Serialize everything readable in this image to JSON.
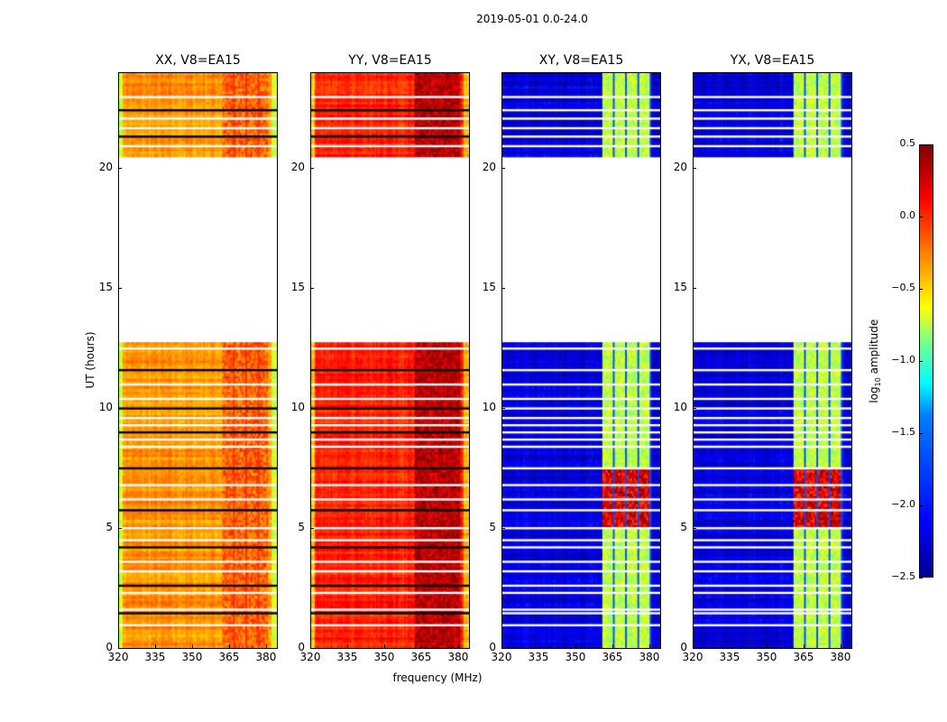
{
  "figure_title": "2019-05-01 0.0-24.0",
  "chart_data": {
    "type": "heatmap",
    "title": "2019-05-01 0.0-24.0",
    "xlabel": "frequency (MHz)",
    "ylabel": "UT (hours)",
    "xlim": [
      320,
      384.4
    ],
    "ylim": [
      0,
      24
    ],
    "xticks": [
      "320",
      "335",
      "350",
      "365",
      "380"
    ],
    "yticks": [
      "0",
      "5",
      "10",
      "15",
      "20"
    ],
    "ytick_values": [
      0,
      5,
      10,
      15,
      20
    ],
    "xtick_values": [
      320,
      335,
      350,
      365,
      380
    ],
    "colormap": "jet",
    "colorbar": {
      "label_main": "log",
      "label_sub": "10",
      "label_rest": " amplitude",
      "range": [
        -2.5,
        0.5
      ],
      "ticks": [
        "0.5",
        "0.0",
        "−0.5",
        "−1.0",
        "−1.5",
        "−2.0",
        "−2.5"
      ],
      "tick_values": [
        0.5,
        0.0,
        -0.5,
        -1.0,
        -1.5,
        -2.0,
        -2.5
      ]
    },
    "no_data_ranges_hours": [
      [
        12.8,
        20.5
      ]
    ],
    "flagged_rows_hours": [
      23.0,
      22.45,
      22.1,
      21.7,
      21.35,
      20.95,
      12.5,
      11.6,
      11.0,
      10.4,
      10.0,
      9.6,
      9.3,
      9.0,
      8.7,
      8.4,
      7.5,
      6.8,
      6.2,
      5.75,
      5.0,
      4.5,
      4.2,
      3.6,
      3.2,
      2.6,
      2.3,
      1.6,
      1.45,
      0.95
    ],
    "panels": [
      {
        "title": "XX, V8=EA15",
        "background_log_amp": -0.4,
        "band_mhz": [
          362,
          381
        ],
        "band_log_amp": -0.25,
        "edge_rolloff": true
      },
      {
        "title": "YY, V8=EA15",
        "background_log_amp": -0.05,
        "band_mhz": [
          362,
          381
        ],
        "band_log_amp": 0.25,
        "edge_rolloff": true
      },
      {
        "title": "XY, V8=EA15",
        "background_log_amp": -2.3,
        "band_mhz": [
          360.7,
          381
        ],
        "band_log_amp": -0.9,
        "band_peak_hours": [
          5,
          7.5
        ],
        "band_peak_log_amp": 0.2
      },
      {
        "title": "YX, V8=EA15",
        "background_log_amp": -2.3,
        "band_mhz": [
          360.7,
          381
        ],
        "band_log_amp": -0.9,
        "band_peak_hours": [
          5,
          7.5
        ],
        "band_peak_log_amp": 0.2
      }
    ]
  }
}
